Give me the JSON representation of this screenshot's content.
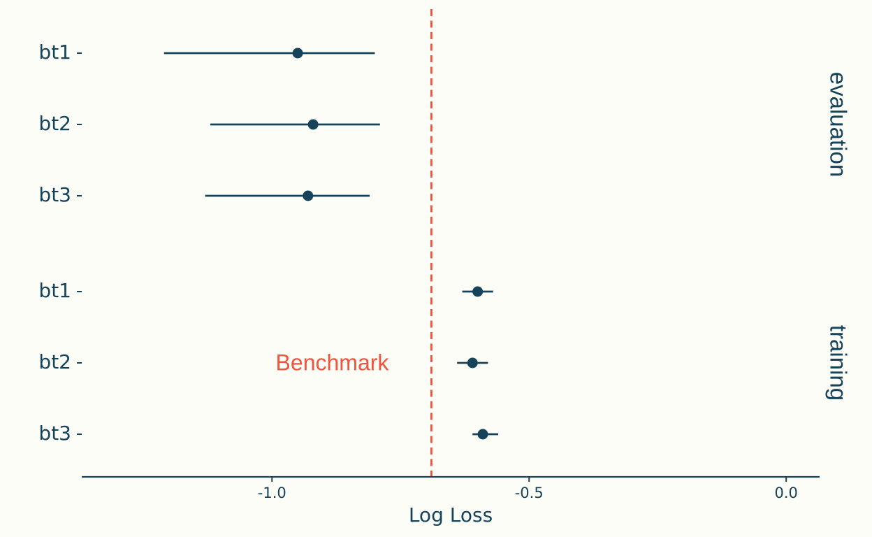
{
  "chart_data": {
    "type": "scatter",
    "subtype": "forest-plot (point estimate with interval)",
    "xlabel": "Log Loss",
    "xlim": [
      -1.37,
      0.065
    ],
    "xticks": [
      -1.0,
      -0.5,
      0.0
    ],
    "xtick_labels": [
      "-1.0",
      "-0.5",
      "0.0"
    ],
    "grid": false,
    "facets": [
      {
        "name": "evaluation",
        "rows": [
          {
            "label": "bt1",
            "estimate": -0.95,
            "low": -1.21,
            "high": -0.8
          },
          {
            "label": "bt2",
            "estimate": -0.92,
            "low": -1.12,
            "high": -0.79
          },
          {
            "label": "bt3",
            "estimate": -0.93,
            "low": -1.13,
            "high": -0.81
          }
        ]
      },
      {
        "name": "training",
        "rows": [
          {
            "label": "bt1",
            "estimate": -0.6,
            "low": -0.63,
            "high": -0.57
          },
          {
            "label": "bt2",
            "estimate": -0.61,
            "low": -0.64,
            "high": -0.58
          },
          {
            "label": "bt3",
            "estimate": -0.59,
            "low": -0.61,
            "high": -0.56
          }
        ]
      }
    ],
    "reference_line": {
      "x": -0.69,
      "label": "Benchmark",
      "style": "dashed"
    },
    "colors": {
      "points": "#15435a",
      "reference": "#f0543c",
      "background": "#fdfdf8",
      "text": "#15435a"
    }
  }
}
